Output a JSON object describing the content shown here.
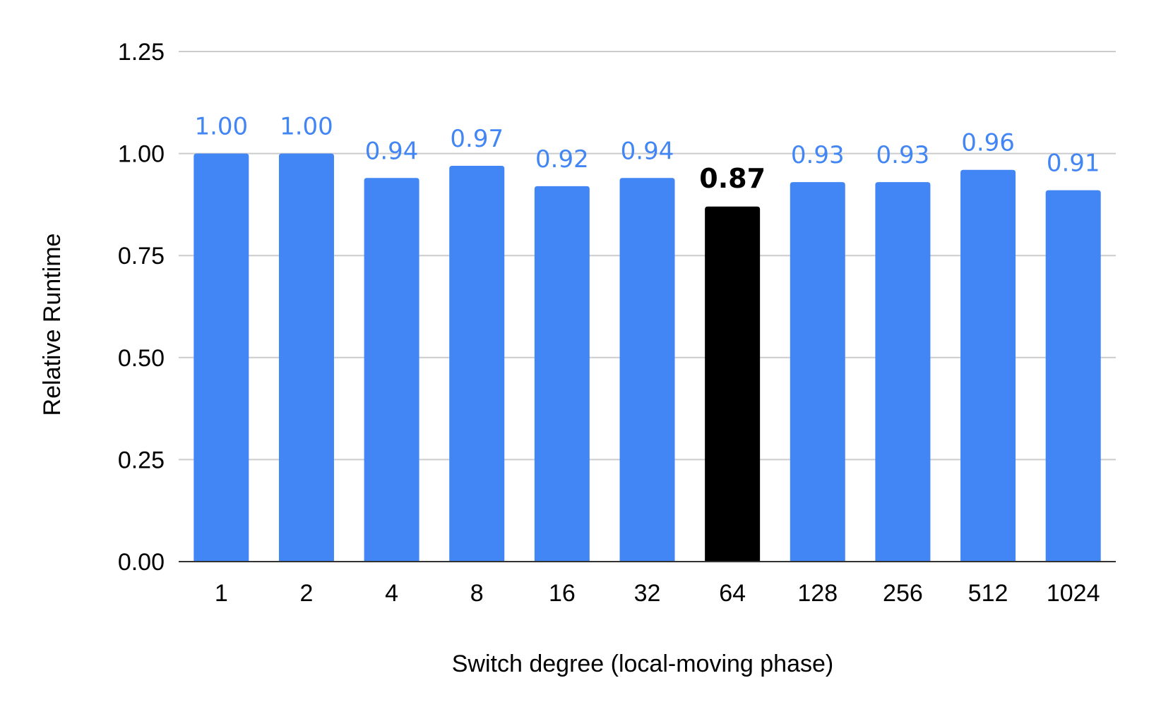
{
  "chart_data": {
    "type": "bar",
    "title": "",
    "xlabel": "Switch degree (local-moving phase)",
    "ylabel": "Relative Runtime",
    "categories": [
      "1",
      "2",
      "4",
      "8",
      "16",
      "32",
      "64",
      "128",
      "256",
      "512",
      "1024"
    ],
    "values": [
      1.0,
      1.0,
      0.94,
      0.97,
      0.92,
      0.94,
      0.87,
      0.93,
      0.93,
      0.96,
      0.91
    ],
    "data_labels": [
      "1.00",
      "1.00",
      "0.94",
      "0.97",
      "0.92",
      "0.94",
      "0.87",
      "0.93",
      "0.93",
      "0.96",
      "0.91"
    ],
    "ylim": [
      0,
      1.25
    ],
    "yticks": [
      "0.00",
      "0.25",
      "0.50",
      "0.75",
      "1.00",
      "1.25"
    ],
    "ytick_values": [
      0,
      0.25,
      0.5,
      0.75,
      1.0,
      1.25
    ],
    "grid": true,
    "legend": "none",
    "highlight_index": 6,
    "colors": {
      "bar": "#4285f4",
      "highlight_bar": "#000000",
      "label": "#4285f4",
      "highlight_label": "#000000",
      "grid": "#cccccc",
      "axis": "#333333"
    }
  }
}
